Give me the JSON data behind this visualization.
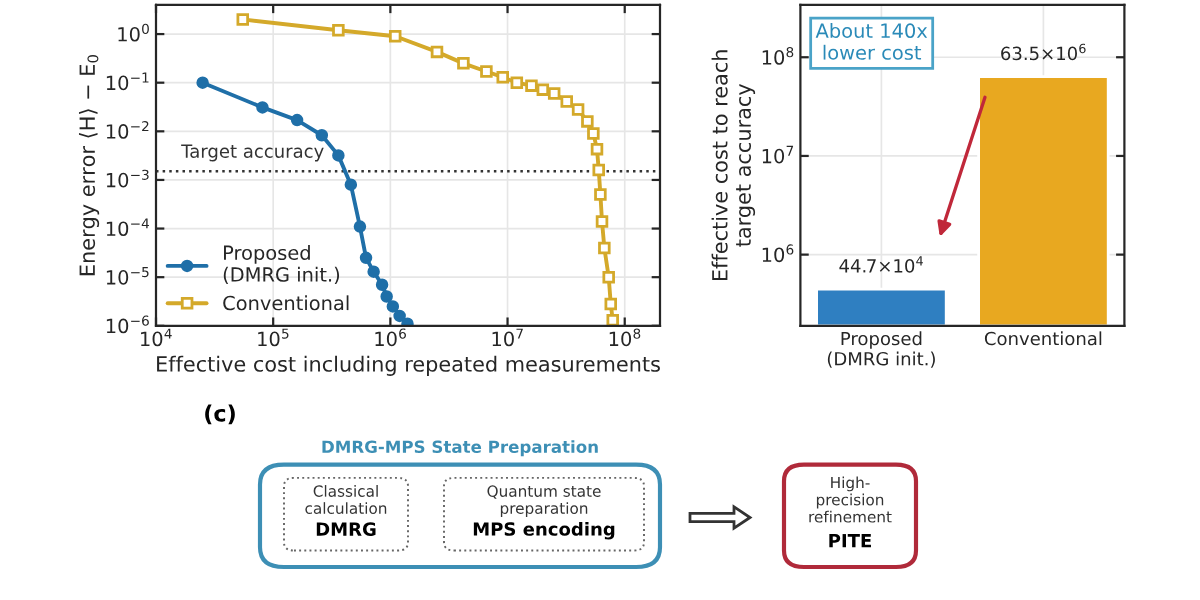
{
  "chart_data": [
    {
      "type": "line",
      "xlabel": "Effective cost including repeated measurements",
      "ylabel": "Energy error ⟨H⟩ − E$_{0}$",
      "log": "xy",
      "xlim": [
        10000,
        200000000
      ],
      "ylim": [
        1e-06,
        4
      ],
      "xticks": [
        {
          "value": 10000,
          "label": "10$^{4}$"
        },
        {
          "value": 100000,
          "label": "10$^{5}$"
        },
        {
          "value": 1000000,
          "label": "10$^{6}$"
        },
        {
          "value": 10000000,
          "label": "10$^{7}$"
        },
        {
          "value": 100000000,
          "label": "10$^{8}$"
        }
      ],
      "yticks": [
        {
          "value": 1e-06,
          "label": "10$^{−6}$"
        },
        {
          "value": 1e-05,
          "label": "10$^{−5}$"
        },
        {
          "value": 0.0001,
          "label": "10$^{−4}$"
        },
        {
          "value": 0.001,
          "label": "10$^{−3}$"
        },
        {
          "value": 0.01,
          "label": "10$^{−2}$"
        },
        {
          "value": 0.1,
          "label": "10$^{−1}$"
        },
        {
          "value": 1,
          "label": "10$^{0}$"
        }
      ],
      "grid": true,
      "legend": "bottom left",
      "ref_lines": [
        {
          "axis": "y",
          "value": 0.0015,
          "label": "Target accuracy",
          "line_style": "dotted",
          "color": "#333333"
        }
      ],
      "series": [
        {
          "name": "Proposed\n(DMRG init.)",
          "color": "#1f6fa8",
          "marker": "circle",
          "x": [
            25000,
            81000,
            160000,
            260000,
            360000,
            460000,
            550000,
            620000,
            720000,
            850000,
            930000,
            1050000,
            1200000,
            1400000
          ],
          "values": [
            0.1,
            0.031,
            0.017,
            0.0083,
            0.0032,
            0.0008,
            0.00011,
            2.5e-05,
            1.3e-05,
            7e-06,
            4e-06,
            2.5e-06,
            1.6e-06,
            1.1e-06
          ]
        },
        {
          "name": "Conventional",
          "color": "#d4a92a",
          "marker": "square",
          "x": [
            55000,
            360000,
            1100000,
            2500000,
            4200000,
            6600000,
            9100000,
            12000000,
            16000000,
            20000000,
            25000000,
            32000000,
            40000000,
            48000000,
            54000000,
            58000000,
            60000000,
            62000000,
            64000000,
            67000000,
            73000000,
            76000000,
            79000000
          ],
          "values": [
            2,
            1.2,
            0.9,
            0.43,
            0.25,
            0.17,
            0.13,
            0.1,
            0.087,
            0.072,
            0.06,
            0.041,
            0.028,
            0.016,
            0.009,
            0.0043,
            0.0016,
            0.0005,
            0.00014,
            4e-05,
            1e-05,
            2.8e-06,
            1.3e-06
          ]
        }
      ]
    },
    {
      "type": "bar",
      "categories": [
        "Proposed\n(DMRG init.)",
        "Conventional"
      ],
      "values": [
        447000,
        63500000
      ],
      "colors": [
        "#2f7fc1",
        "#e8a820"
      ],
      "value_labels": [
        "44.7×10$^{4}$",
        "63.5×10$^{6}$"
      ],
      "log": true,
      "ylim": [
        190000,
        340000000
      ],
      "yticks": [
        {
          "value": 1000000,
          "label": "10$^{6}$"
        },
        {
          "value": 10000000,
          "label": "10$^{7}$"
        },
        {
          "value": 100000000,
          "label": "10$^{8}$"
        }
      ],
      "ylabel": "Effective cost to reach\ntarget accuracy",
      "grid": true,
      "annotations": [
        "About 140x\nlower cost"
      ]
    },
    {
      "type": "other",
      "annotations": [
        "(c)",
        "DMRG-MPS State Preparation",
        "Classical\ncalculation",
        "DMRG",
        "Quantum state\npreparation",
        "MPS encoding",
        "High-\nprecision\nrefinement",
        "PITE"
      ]
    }
  ]
}
